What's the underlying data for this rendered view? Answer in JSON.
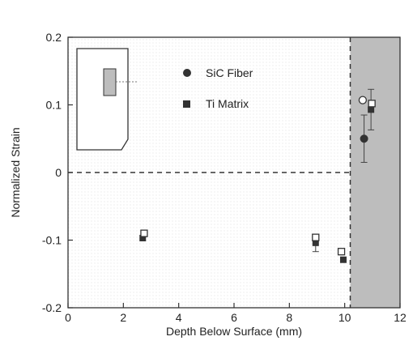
{
  "chart_data": {
    "type": "scatter",
    "xlabel": "Depth Below Surface (mm)",
    "ylabel": "Normalized Strain",
    "xlim": [
      0,
      12
    ],
    "ylim": [
      -0.2,
      0.2
    ],
    "xticks": [
      0,
      2,
      4,
      6,
      8,
      10,
      12
    ],
    "yticks": [
      -0.2,
      -0.1,
      0,
      0.1,
      0.2
    ],
    "ytick_labels": [
      "-0.2",
      "-0.1",
      "0",
      "0.1",
      "0.2"
    ],
    "grid": false,
    "zero_line": 0,
    "shaded_region": {
      "x_start": 10.2,
      "x_end": 12,
      "color": "#bdbdbd"
    },
    "legend_placement": "top-center",
    "series": [
      {
        "name": "SiC Fiber",
        "marker": "circle",
        "color": "#333333",
        "points": [
          {
            "x": 10.7,
            "y": 0.05,
            "err": 0.035
          }
        ]
      },
      {
        "name": "Ti Matrix",
        "marker": "square",
        "color": "#333333",
        "points": [
          {
            "x": 2.7,
            "y": -0.097
          },
          {
            "x": 8.95,
            "y": -0.104,
            "err": 0.013
          },
          {
            "x": 9.95,
            "y": -0.129
          },
          {
            "x": 10.95,
            "y": 0.093,
            "err": 0.03
          }
        ]
      },
      {
        "marker": "open-square",
        "color": "#333333",
        "points": [
          {
            "x": 2.75,
            "y": -0.09
          },
          {
            "x": 8.95,
            "y": -0.096
          },
          {
            "x": 9.88,
            "y": -0.117
          },
          {
            "x": 10.98,
            "y": 0.102
          }
        ]
      },
      {
        "marker": "open-circle",
        "color": "#333333",
        "points": [
          {
            "x": 10.65,
            "y": 0.107
          }
        ]
      }
    ]
  },
  "inset": {
    "icon": "specimen-cross-section-icon",
    "fill": "#bdbdbd"
  }
}
